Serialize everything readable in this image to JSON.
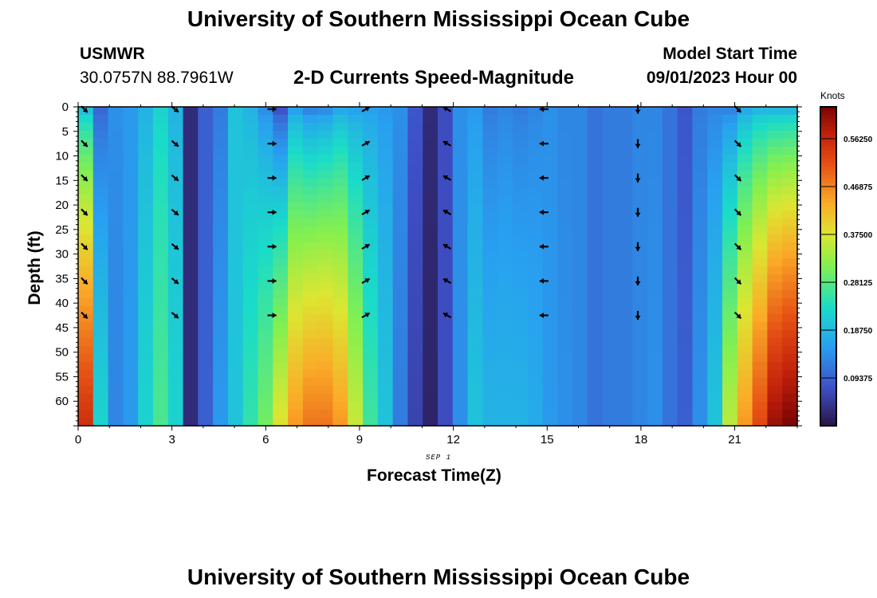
{
  "header": {
    "title": "University of Southern Mississippi Ocean Cube",
    "station": "USMWR",
    "location": "30.0757N  88.7961W",
    "subtitle": "2-D Currents Speed-Magnitude",
    "model_start_label": "Model Start Time",
    "model_start_value": "09/01/2023 Hour 00"
  },
  "footer": {
    "title": "University of Southern Mississippi Ocean Cube"
  },
  "chart_data": {
    "type": "heatmap",
    "title": "2-D Currents Speed-Magnitude",
    "xlabel": "Forecast Time(Z)",
    "ylabel": "Depth (ft)",
    "date_label": "SEP 1",
    "xlim": [
      0,
      23
    ],
    "ylim": [
      0,
      65
    ],
    "x_ticks": [
      "0",
      "3",
      "6",
      "9",
      "12",
      "15",
      "18",
      "21"
    ],
    "y_ticks": [
      "0",
      "5",
      "10",
      "15",
      "20",
      "25",
      "30",
      "35",
      "40",
      "45",
      "50",
      "55",
      "60"
    ],
    "colorbar": {
      "label": "Knots",
      "vmin": 0,
      "vmax": 0.625,
      "ticks": [
        "0.56250",
        "0.46875",
        "0.37500",
        "0.28125",
        "0.18750",
        "0.09375"
      ]
    },
    "speed_surface": [
      0.2,
      0.1,
      0.14,
      0.15,
      0.18,
      0.22,
      0.18,
      0.03,
      0.09,
      0.12,
      0.2,
      0.18,
      0.14,
      0.08,
      0.16,
      0.13,
      0.14,
      0.17,
      0.16,
      0.16,
      0.15,
      0.14,
      0.08,
      0.03,
      0.07,
      0.14,
      0.15,
      0.12,
      0.13,
      0.12,
      0.13,
      0.14,
      0.13,
      0.13,
      0.11,
      0.12,
      0.12,
      0.13,
      0.13,
      0.11,
      0.08,
      0.12,
      0.13,
      0.13,
      0.17,
      0.19,
      0.19,
      0.19
    ],
    "speed_bottom": [
      0.55,
      0.22,
      0.13,
      0.15,
      0.22,
      0.27,
      0.22,
      0.03,
      0.09,
      0.15,
      0.2,
      0.25,
      0.3,
      0.38,
      0.45,
      0.48,
      0.48,
      0.45,
      0.36,
      0.26,
      0.2,
      0.12,
      0.06,
      0.02,
      0.07,
      0.14,
      0.2,
      0.18,
      0.18,
      0.18,
      0.17,
      0.15,
      0.14,
      0.13,
      0.11,
      0.12,
      0.12,
      0.13,
      0.14,
      0.11,
      0.09,
      0.14,
      0.2,
      0.35,
      0.45,
      0.52,
      0.6,
      0.62
    ],
    "arrow_times": [
      0.2,
      3.1,
      6.2,
      9.2,
      11.8,
      14.9,
      17.9,
      21.1
    ],
    "arrow_depths": [
      0,
      7,
      14,
      21,
      28,
      35,
      42
    ],
    "arrow_direction_deg": [
      135,
      130,
      90,
      60,
      300,
      270,
      180,
      135
    ]
  }
}
